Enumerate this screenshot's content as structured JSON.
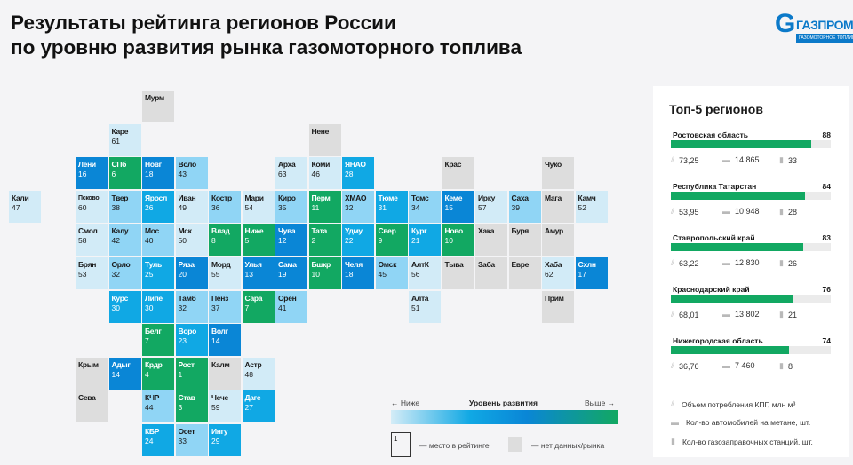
{
  "title_line1": "Результаты рейтинга регионов России",
  "title_line2": "по уровню развития рынка газомоторного топлива",
  "logo": {
    "word": "ГАЗПРОМ",
    "sub": "ГАЗОМОТОРНОЕ ТОПЛИВО"
  },
  "colors": {
    "green": "#12a862",
    "dark_blue": "#0a86d6",
    "mid_blue": "#10a8e4",
    "light_blue": "#90d5f5",
    "pale_blue": "#d2ebf7",
    "gray": "#dddddd"
  },
  "tiles": [
    {
      "n": "Мурм",
      "r": null
    },
    {
      "n": "Каре",
      "r": 61
    },
    {
      "n": "Нене",
      "r": null
    },
    {
      "n": "Лени",
      "r": 16
    },
    {
      "n": "СПб",
      "r": 6
    },
    {
      "n": "Новг",
      "r": 18
    },
    {
      "n": "Воло",
      "r": 43
    },
    {
      "n": "Арха",
      "r": 63
    },
    {
      "n": "Коми",
      "r": 46
    },
    {
      "n": "ЯНАО",
      "r": 28
    },
    {
      "n": "Крас",
      "r": null
    },
    {
      "n": "Чуко",
      "r": null
    },
    {
      "n": "Кали",
      "r": 47
    },
    {
      "n": "Псково",
      "r": 60
    },
    {
      "n": "Твер",
      "r": 38
    },
    {
      "n": "Яросл",
      "r": 26
    },
    {
      "n": "Иван",
      "r": 49
    },
    {
      "n": "Костр",
      "r": 36
    },
    {
      "n": "Мари",
      "r": 54
    },
    {
      "n": "Киро",
      "r": 35
    },
    {
      "n": "Перм",
      "r": 11
    },
    {
      "n": "ХМАО",
      "r": 32
    },
    {
      "n": "Тюме",
      "r": 31
    },
    {
      "n": "Томс",
      "r": 34
    },
    {
      "n": "Кеме",
      "r": 15
    },
    {
      "n": "Ирку",
      "r": 57
    },
    {
      "n": "Саха",
      "r": 39
    },
    {
      "n": "Мага",
      "r": null
    },
    {
      "n": "Камч",
      "r": 52
    },
    {
      "n": "Смол",
      "r": 58
    },
    {
      "n": "Калу",
      "r": 42
    },
    {
      "n": "Мос",
      "r": 40
    },
    {
      "n": "Мск",
      "r": 50
    },
    {
      "n": "Влад",
      "r": 8
    },
    {
      "n": "Ниже",
      "r": 5
    },
    {
      "n": "Чува",
      "r": 12
    },
    {
      "n": "Тата",
      "r": 2
    },
    {
      "n": "Удму",
      "r": 22
    },
    {
      "n": "Свер",
      "r": 9
    },
    {
      "n": "Кург",
      "r": 21
    },
    {
      "n": "Ново",
      "r": 10
    },
    {
      "n": "Хака",
      "r": null
    },
    {
      "n": "Буря",
      "r": null
    },
    {
      "n": "Амур",
      "r": null
    },
    {
      "n": "Брян",
      "r": 53
    },
    {
      "n": "Орло",
      "r": 32
    },
    {
      "n": "Туль",
      "r": 25
    },
    {
      "n": "Ряза",
      "r": 20
    },
    {
      "n": "Морд",
      "r": 55
    },
    {
      "n": "Улья",
      "r": 13
    },
    {
      "n": "Сама",
      "r": 19
    },
    {
      "n": "Бшкр",
      "r": 10
    },
    {
      "n": "Челя",
      "r": 18
    },
    {
      "n": "Омск",
      "r": 45
    },
    {
      "n": "АлтК",
      "r": 56
    },
    {
      "n": "Тыва",
      "r": null
    },
    {
      "n": "Заба",
      "r": null
    },
    {
      "n": "Евре",
      "r": null
    },
    {
      "n": "Хаба",
      "r": 62
    },
    {
      "n": "Схлн",
      "r": 17
    },
    {
      "n": "Курс",
      "r": 30
    },
    {
      "n": "Липе",
      "r": 30
    },
    {
      "n": "Тамб",
      "r": 32
    },
    {
      "n": "Пенз",
      "r": 37
    },
    {
      "n": "Сара",
      "r": 7
    },
    {
      "n": "Орен",
      "r": 41
    },
    {
      "n": "Алта",
      "r": 51
    },
    {
      "n": "Прим",
      "r": null
    },
    {
      "n": "Белг",
      "r": 7
    },
    {
      "n": "Воро",
      "r": 23
    },
    {
      "n": "Волг",
      "r": 14
    },
    {
      "n": "Крым",
      "r": null
    },
    {
      "n": "Адыг",
      "r": 14
    },
    {
      "n": "Крдр",
      "r": 4
    },
    {
      "n": "Рост",
      "r": 1
    },
    {
      "n": "Калм",
      "r": null
    },
    {
      "n": "Астр",
      "r": 48
    },
    {
      "n": "Сева",
      "r": null
    },
    {
      "n": "КЧР",
      "r": 44
    },
    {
      "n": "Став",
      "r": 3
    },
    {
      "n": "Чече",
      "r": 59
    },
    {
      "n": "Даге",
      "r": 27
    },
    {
      "n": "КБР",
      "r": 24
    },
    {
      "n": "Осет",
      "r": 33
    },
    {
      "n": "Ингу",
      "r": 29
    }
  ],
  "top5": {
    "title": "Топ-5 регионов",
    "max_score": 100,
    "regions": [
      {
        "name": "Ростовская область",
        "score": 88,
        "gas": "73,25",
        "cars": "14 865",
        "stations": "33"
      },
      {
        "name": "Республика Татарстан",
        "score": 84,
        "gas": "53,95",
        "cars": "10 948",
        "stations": "28"
      },
      {
        "name": "Ставропольский край",
        "score": 83,
        "gas": "63,22",
        "cars": "12 830",
        "stations": "26"
      },
      {
        "name": "Краснодарский край",
        "score": 76,
        "gas": "68,01",
        "cars": "13 802",
        "stations": "21"
      },
      {
        "name": "Нижегородская область",
        "score": 74,
        "gas": "36,76",
        "cars": "7 460",
        "stations": "8"
      }
    ],
    "legend": [
      "Объем потребления КПГ, млн м³",
      "Кол-во автомобилей на метане, шт.",
      "Кол-во газозаправочных станций, шт."
    ]
  },
  "scale": {
    "lower": "← Ниже",
    "title": "Уровень развития",
    "higher": "Выше →",
    "box_example": "1",
    "box_label": "— место в рейтинге",
    "gray_label": "— нет данных/рынка"
  }
}
